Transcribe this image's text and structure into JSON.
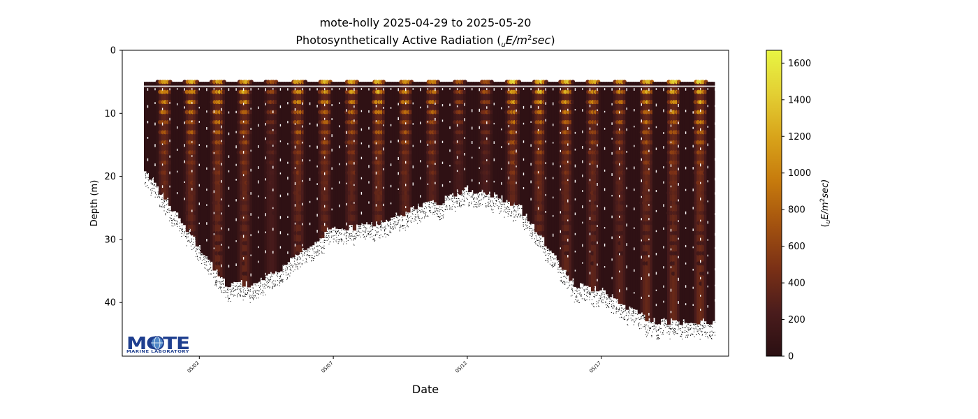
{
  "chart_data": {
    "type": "scatter",
    "title_line1": "mote-holly 2025-04-29 to 2025-05-20",
    "title_line2_prefix": "Photosynthetically Active Radiation (",
    "title_unit_sub": "u",
    "title_unit_main": "E/m",
    "title_unit_sup": "2",
    "title_unit_tail": "sec",
    "title_line2_suffix": ")",
    "xlabel": "Date",
    "ylabel": "Depth (m)",
    "x_ticks": [
      "05/02",
      "05/07",
      "05/12",
      "05/17"
    ],
    "y_ticks": [
      "0",
      "10",
      "20",
      "30",
      "40"
    ],
    "y_tick_values": [
      0,
      10,
      20,
      30,
      40
    ],
    "ylim": [
      48.5,
      0
    ],
    "xlim": [
      "2025-04-29T03:00",
      "2025-05-21T18:00"
    ],
    "colorbar": {
      "label_prefix": "(",
      "label_sub": "u",
      "label_main": "E/m",
      "label_sup": "2",
      "label_tail": "sec)",
      "ticks": [
        "0",
        "200",
        "400",
        "600",
        "800",
        "1000",
        "1200",
        "1400",
        "1600"
      ],
      "tick_values": [
        0,
        200,
        400,
        600,
        800,
        1000,
        1200,
        1400,
        1600
      ],
      "range": [
        0,
        1670
      ],
      "colormap": [
        "#2a0f12",
        "#4a1c1c",
        "#7a3016",
        "#a3520f",
        "#c67a0d",
        "#d8a31a",
        "#e3cf33",
        "#e8f543"
      ]
    },
    "min_depth_m": 5,
    "max_depth_profile": [
      {
        "date": "2025-04-30T00:00",
        "depth": 19
      },
      {
        "date": "2025-05-01T00:00",
        "depth": 25
      },
      {
        "date": "2025-05-02T00:00",
        "depth": 31
      },
      {
        "date": "2025-05-03T00:00",
        "depth": 37
      },
      {
        "date": "2025-05-04T00:00",
        "depth": 37
      },
      {
        "date": "2025-05-05T00:00",
        "depth": 35
      },
      {
        "date": "2025-05-06T00:00",
        "depth": 31
      },
      {
        "date": "2025-05-07T00:00",
        "depth": 28
      },
      {
        "date": "2025-05-08T00:00",
        "depth": 28
      },
      {
        "date": "2025-05-09T00:00",
        "depth": 27
      },
      {
        "date": "2025-05-10T00:00",
        "depth": 25
      },
      {
        "date": "2025-05-11T00:00",
        "depth": 24
      },
      {
        "date": "2025-05-12T00:00",
        "depth": 22
      },
      {
        "date": "2025-05-13T00:00",
        "depth": 23
      },
      {
        "date": "2025-05-14T00:00",
        "depth": 25
      },
      {
        "date": "2025-05-15T00:00",
        "depth": 31
      },
      {
        "date": "2025-05-16T00:00",
        "depth": 37
      },
      {
        "date": "2025-05-17T00:00",
        "depth": 38
      },
      {
        "date": "2025-05-18T00:00",
        "depth": 41
      },
      {
        "date": "2025-05-19T00:00",
        "depth": 43
      },
      {
        "date": "2025-05-20T00:00",
        "depth": 43
      },
      {
        "date": "2025-05-21T00:00",
        "depth": 43
      }
    ],
    "daily_peak_par": [
      {
        "date": "2025-04-30",
        "peak": 1250
      },
      {
        "date": "2025-05-01",
        "peak": 1300
      },
      {
        "date": "2025-05-02",
        "peak": 1350
      },
      {
        "date": "2025-05-03",
        "peak": 1300
      },
      {
        "date": "2025-05-04",
        "peak": 700
      },
      {
        "date": "2025-05-05",
        "peak": 1300
      },
      {
        "date": "2025-05-06",
        "peak": 1300
      },
      {
        "date": "2025-05-07",
        "peak": 1200
      },
      {
        "date": "2025-05-08",
        "peak": 1350
      },
      {
        "date": "2025-05-09",
        "peak": 1200
      },
      {
        "date": "2025-05-10",
        "peak": 1100
      },
      {
        "date": "2025-05-11",
        "peak": 700
      },
      {
        "date": "2025-05-12",
        "peak": 800
      },
      {
        "date": "2025-05-13",
        "peak": 1350
      },
      {
        "date": "2025-05-14",
        "peak": 1350
      },
      {
        "date": "2025-05-15",
        "peak": 1300
      },
      {
        "date": "2025-05-16",
        "peak": 1200
      },
      {
        "date": "2025-05-17",
        "peak": 1100
      },
      {
        "date": "2025-05-18",
        "peak": 1350
      },
      {
        "date": "2025-05-19",
        "peak": 1400
      },
      {
        "date": "2025-05-20",
        "peak": 1500
      }
    ]
  },
  "logo": {
    "word": "MOTE",
    "subtitle": "MARINE LABORATORY",
    "colors": {
      "primary": "#1f3f8f",
      "accent": "#4f86c6"
    }
  }
}
